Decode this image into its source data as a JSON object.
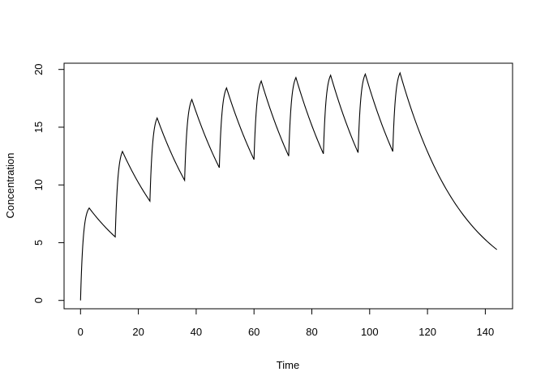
{
  "chart_data": {
    "type": "line",
    "title": "",
    "xlabel": "Time",
    "ylabel": "Concentration",
    "xlim": [
      0,
      144
    ],
    "ylim": [
      0,
      20
    ],
    "xticks": [
      0,
      20,
      40,
      60,
      80,
      100,
      120,
      140
    ],
    "yticks": [
      0,
      5,
      10,
      15,
      20
    ],
    "grid": false,
    "line_color": "#000000",
    "series": [
      {
        "points": [
          [
            0,
            0
          ],
          [
            3,
            8.0
          ],
          [
            12,
            5.5
          ],
          [
            14.5,
            12.9
          ],
          [
            24,
            8.6
          ],
          [
            26.5,
            15.8
          ],
          [
            36,
            10.4
          ],
          [
            38.5,
            17.4
          ],
          [
            48,
            11.5
          ],
          [
            50.5,
            18.4
          ],
          [
            60,
            12.2
          ],
          [
            62.5,
            19.0
          ],
          [
            72,
            12.5
          ],
          [
            74.5,
            19.3
          ],
          [
            84,
            12.7
          ],
          [
            86.5,
            19.5
          ],
          [
            96,
            12.8
          ],
          [
            98.5,
            19.6
          ],
          [
            108,
            12.9
          ],
          [
            110.5,
            19.7
          ],
          [
            144,
            4.4
          ]
        ]
      }
    ]
  }
}
